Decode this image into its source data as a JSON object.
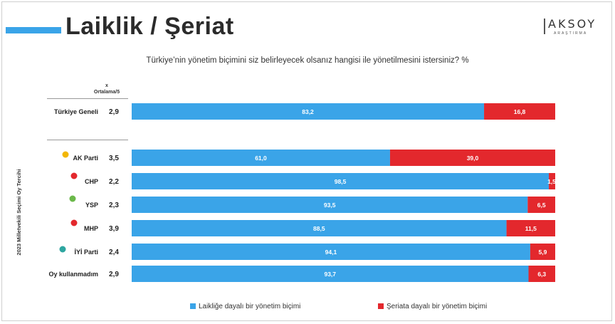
{
  "header": {
    "title": "Laiklik / Şeriat",
    "logo_text": "AKSOY",
    "logo_sub": "ARAŞTIRMA"
  },
  "question": "Türkiye’nin yönetim biçimini siz belirleyecek olsanız hangisi ile yönetilmesini istersiniz? %",
  "avg_header": {
    "symbol": "x",
    "label": "Ortalama/5"
  },
  "vertical_label": "2023 Milletvekili Seçimi Oy Tercihi",
  "colors": {
    "laik": "#3aa4e8",
    "seriat": "#e3282d"
  },
  "chart_data": {
    "type": "bar",
    "orientation": "horizontal",
    "stacked": true,
    "categories": [
      "Türkiye Geneli",
      "AK Parti",
      "CHP",
      "YSP",
      "MHP",
      "İYİ Parti",
      "Oy kullanmadım"
    ],
    "averages": [
      "2,9",
      "3,5",
      "2,2",
      "2,3",
      "3,9",
      "2,4",
      "2,9"
    ],
    "series": [
      {
        "name": "Laikliğe dayalı bir yönetim biçimi",
        "values": [
          83.2,
          61.0,
          98.5,
          93.5,
          88.5,
          94.1,
          93.7
        ],
        "labels": [
          "83,2",
          "61,0",
          "98,5",
          "93,5",
          "88,5",
          "94,1",
          "93,7"
        ]
      },
      {
        "name": "Şeriata dayalı bir yönetim biçimi",
        "values": [
          16.8,
          39.0,
          1.5,
          6.5,
          11.5,
          5.9,
          6.3
        ],
        "labels": [
          "16,8",
          "39,0",
          "1,5",
          "6,5",
          "11,5",
          "5,9",
          "6,3"
        ]
      }
    ],
    "xlim": [
      0,
      100
    ],
    "legend": "bottom"
  }
}
